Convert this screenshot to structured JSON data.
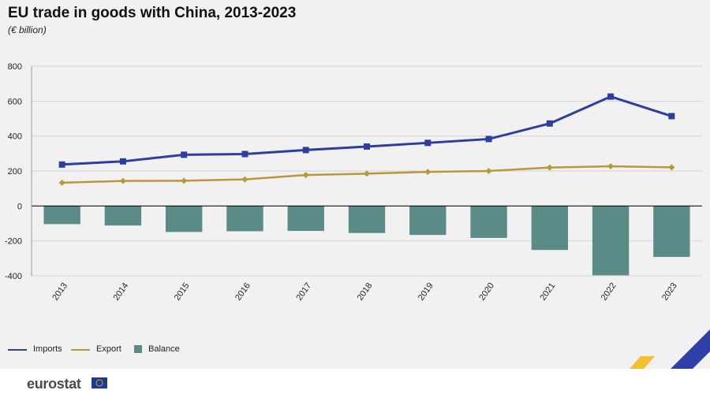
{
  "header": {
    "title": "EU trade in goods with China, 2013-2023",
    "subtitle": "(€ billion)"
  },
  "legend": {
    "imports": "Imports",
    "export": "Export",
    "balance": "Balance"
  },
  "footer": {
    "brand": "eurostat",
    "flag_icon": "eu-flag-icon"
  },
  "colors": {
    "imports": "#2d3e9e",
    "export": "#b59a3c",
    "balance": "#5a8b87",
    "grid": "#d4d4d4",
    "zero_line": "#000000"
  },
  "chart_data": {
    "type": "bar",
    "title": "EU trade in goods with China, 2013-2023",
    "subtitle": "(€ billion)",
    "categories": [
      "2013",
      "2014",
      "2015",
      "2016",
      "2017",
      "2018",
      "2019",
      "2020",
      "2021",
      "2022",
      "2023"
    ],
    "series": [
      {
        "name": "Imports",
        "type": "line",
        "marker": "square",
        "values": [
          237,
          255,
          293,
          297,
          320,
          340,
          361,
          383,
          472,
          626,
          514
        ]
      },
      {
        "name": "Export",
        "type": "line",
        "marker": "diamond",
        "values": [
          133,
          143,
          144,
          152,
          177,
          185,
          195,
          200,
          220,
          227,
          221
        ]
      },
      {
        "name": "Balance",
        "type": "bar",
        "values": [
          -104,
          -112,
          -149,
          -145,
          -143,
          -155,
          -166,
          -183,
          -252,
          -397,
          -292
        ]
      }
    ],
    "ylim": [
      -400,
      800
    ],
    "yticks": [
      -400,
      -200,
      0,
      200,
      400,
      600,
      800
    ],
    "ytick_labels": [
      "-400",
      "-200",
      "0",
      "200",
      "400",
      "600",
      "800"
    ],
    "xlabel": "",
    "ylabel": "",
    "grid": true,
    "legend_position": "bottom-left"
  }
}
